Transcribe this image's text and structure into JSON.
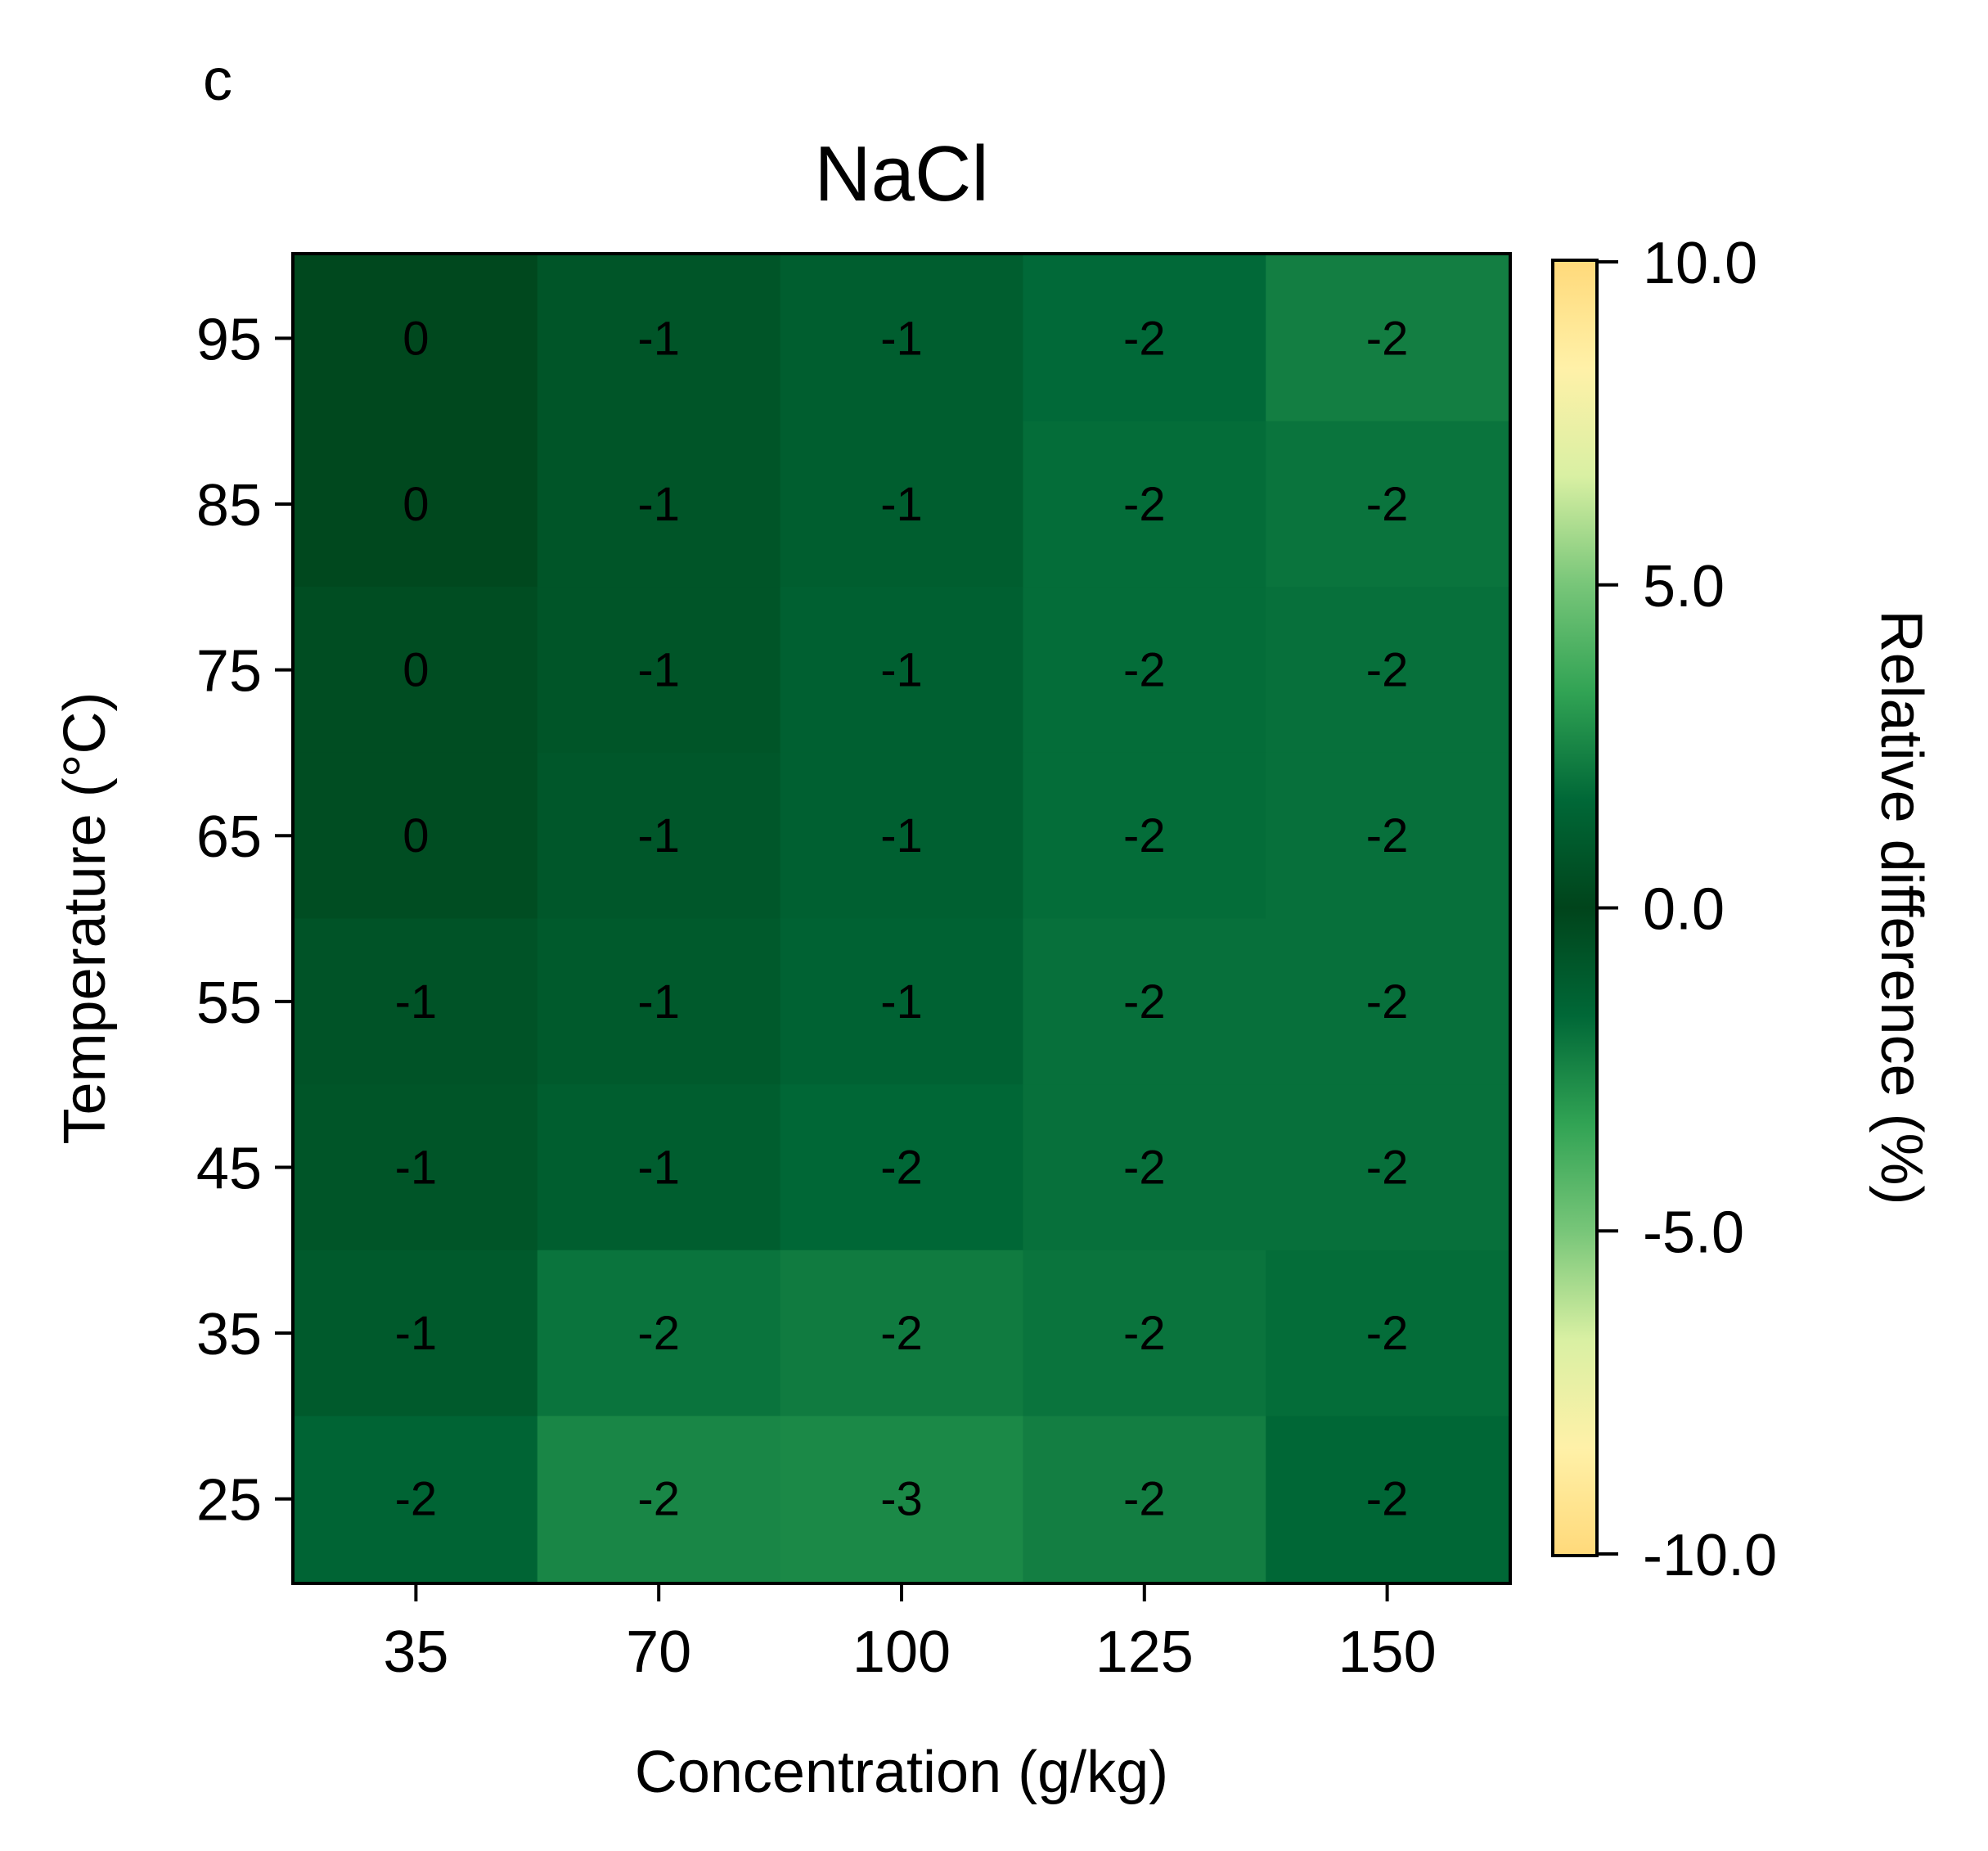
{
  "panel_label": "c",
  "chart_data": {
    "type": "heatmap",
    "title": "NaCl",
    "xlabel": "Concentration (g/kg)",
    "ylabel": "Temperature (°C)",
    "x_categories": [
      "35",
      "70",
      "100",
      "125",
      "150"
    ],
    "y_categories": [
      "95",
      "85",
      "75",
      "65",
      "55",
      "45",
      "35",
      "25"
    ],
    "values": [
      [
        -0.2,
        -0.8,
        -1.2,
        -1.7,
        -2.3
      ],
      [
        -0.2,
        -0.8,
        -1.2,
        -1.8,
        -2.0
      ],
      [
        -0.4,
        -0.8,
        -1.3,
        -1.8,
        -1.9
      ],
      [
        -0.4,
        -0.9,
        -1.3,
        -1.8,
        -1.9
      ],
      [
        -0.7,
        -1.0,
        -1.4,
        -1.9,
        -1.9
      ],
      [
        -0.8,
        -1.2,
        -1.6,
        -1.9,
        -1.9
      ],
      [
        -1.0,
        -2.0,
        -2.2,
        -2.0,
        -1.8
      ],
      [
        -1.5,
        -2.5,
        -2.6,
        -2.3,
        -1.6
      ]
    ],
    "labels": [
      [
        "0",
        "-1",
        "-1",
        "-2",
        "-2"
      ],
      [
        "0",
        "-1",
        "-1",
        "-2",
        "-2"
      ],
      [
        "0",
        "-1",
        "-1",
        "-2",
        "-2"
      ],
      [
        "0",
        "-1",
        "-1",
        "-2",
        "-2"
      ],
      [
        "-1",
        "-1",
        "-1",
        "-2",
        "-2"
      ],
      [
        "-1",
        "-1",
        "-2",
        "-2",
        "-2"
      ],
      [
        "-1",
        "-2",
        "-2",
        "-2",
        "-2"
      ],
      [
        "-2",
        "-2",
        "-3",
        "-2",
        "-2"
      ]
    ],
    "colorbar": {
      "label": "Relative difference (%)",
      "range": [
        -10,
        10
      ],
      "ticks": [
        10,
        5,
        0,
        -5,
        -10
      ],
      "tick_labels": [
        "10.0",
        "5.0",
        "0.0",
        "-5.0",
        "-10.0"
      ],
      "colormap": "YlGn reversed + YlOrBr",
      "stops": [
        "#ffd97a",
        "#fff1a8",
        "#d9f0a3",
        "#78c679",
        "#31a354",
        "#006837",
        "#00441b",
        "#006837",
        "#31a354",
        "#78c679",
        "#d9f0a3",
        "#fff1a8",
        "#ffd97a"
      ]
    }
  }
}
